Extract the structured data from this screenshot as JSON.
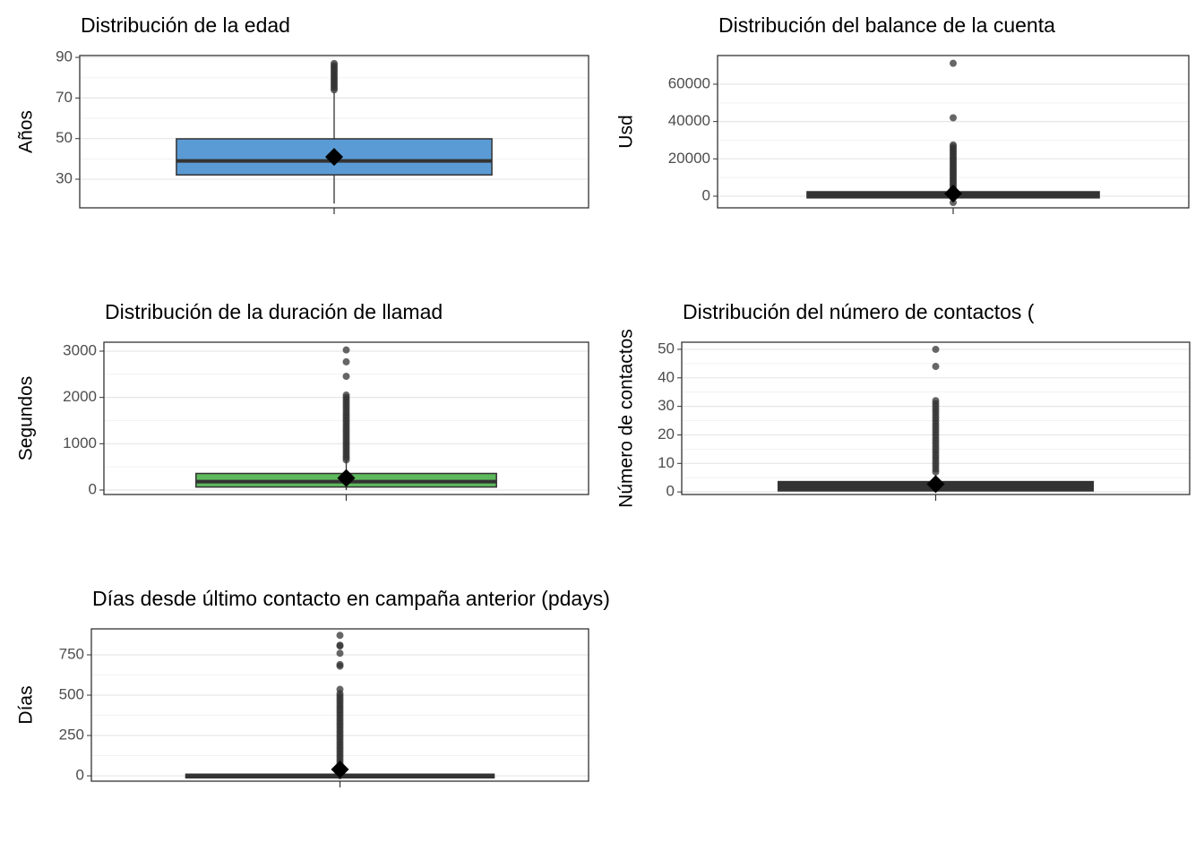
{
  "chart_data": [
    {
      "type": "box",
      "title": "Distribución de la edad",
      "ylabel": "Años",
      "ylim": [
        15.9,
        90.9
      ],
      "yticks": [
        30,
        50,
        70,
        90
      ],
      "grid": true,
      "color": "#5b9bd5",
      "min": 18,
      "q1": 33,
      "median": 39,
      "q3": 49,
      "max": 73,
      "mean": 41,
      "outliers": [
        74,
        75,
        76,
        77,
        78,
        79,
        80,
        81,
        82,
        83,
        84,
        85,
        86,
        87
      ]
    },
    {
      "type": "box",
      "title": "Distribución del balance de la cuenta",
      "ylabel": "Usd",
      "ylim": [
        -6235,
        75350
      ],
      "yticks": [
        0,
        20000,
        40000,
        60000
      ],
      "grid": true,
      "color": "#333333",
      "min": -3000,
      "q1": 72,
      "median": 448,
      "q3": 1428,
      "max": 3462,
      "mean": 1362,
      "outliers": [
        -3372,
        3500,
        4500,
        5500,
        6500,
        7500,
        8500,
        9500,
        10500,
        11500,
        12500,
        13500,
        14500,
        15500,
        16500,
        17500,
        18500,
        19500,
        20500,
        21500,
        22500,
        23500,
        24500,
        25500,
        26500,
        27500,
        42000,
        71188
      ]
    },
    {
      "type": "box",
      "title": "Distribución de la duración de llamad",
      "ylabel": "Segundos",
      "ylim": [
        -97,
        3193
      ],
      "yticks": [
        0,
        1000,
        2000,
        3000
      ],
      "grid": true,
      "color": "#5cb85c",
      "min": 0,
      "q1": 103,
      "median": 180,
      "q3": 319,
      "max": 643,
      "mean": 258,
      "outliers": [
        650,
        700,
        750,
        800,
        850,
        900,
        950,
        1000,
        1050,
        1100,
        1150,
        1200,
        1250,
        1300,
        1350,
        1400,
        1450,
        1500,
        1550,
        1600,
        1650,
        1700,
        1750,
        1800,
        1850,
        1900,
        1950,
        2000,
        2050,
        2456,
        2769,
        3025
      ]
    },
    {
      "type": "box",
      "title": "Distribución del número de contactos (",
      "ylabel": "Número de contactos",
      "ylim": [
        -0.9,
        52.5
      ],
      "yticks": [
        0,
        10,
        20,
        30,
        40,
        50
      ],
      "grid": true,
      "color": "#333333",
      "min": 1,
      "q1": 1,
      "median": 2,
      "q3": 3,
      "max": 6,
      "mean": 2.76,
      "outliers": [
        7,
        8,
        9,
        10,
        11,
        12,
        13,
        14,
        15,
        16,
        17,
        18,
        19,
        20,
        21,
        22,
        23,
        24,
        25,
        26,
        27,
        28,
        29,
        30,
        31,
        32,
        44,
        50
      ]
    },
    {
      "type": "box",
      "title": "Días desde último contacto en campaña anterior (pdays)",
      "ylabel": "Días",
      "ylim": [
        -33,
        911
      ],
      "yticks": [
        0,
        250,
        500,
        750
      ],
      "grid": true,
      "color": "#333333",
      "min": -1,
      "q1": -1,
      "median": -1,
      "q3": -1,
      "max": -1,
      "mean": 40,
      "outliers": [
        1,
        15,
        30,
        45,
        60,
        75,
        90,
        105,
        120,
        135,
        150,
        165,
        180,
        195,
        210,
        225,
        240,
        255,
        270,
        285,
        300,
        315,
        330,
        345,
        360,
        375,
        390,
        405,
        420,
        435,
        450,
        465,
        480,
        495,
        510,
        536,
        680,
        690,
        760,
        805,
        810,
        871
      ]
    }
  ]
}
